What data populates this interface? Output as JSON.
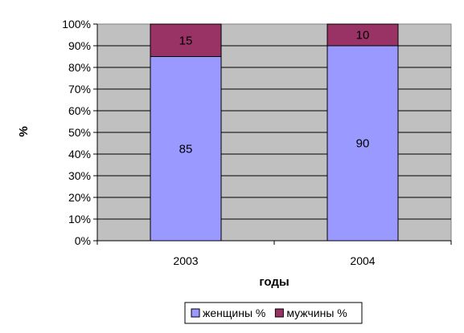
{
  "chart_data": {
    "type": "bar",
    "stacked": "percent",
    "categories": [
      "2003",
      "2004"
    ],
    "series": [
      {
        "name": "женщины %",
        "values": [
          85,
          90
        ],
        "color": "#9999ff"
      },
      {
        "name": "мужчины %",
        "values": [
          15,
          10
        ],
        "color": "#993366"
      }
    ],
    "xlabel": "годы",
    "ylabel": "%",
    "ylim": [
      0,
      100
    ],
    "yticks": [
      "0%",
      "10%",
      "20%",
      "30%",
      "40%",
      "50%",
      "60%",
      "70%",
      "80%",
      "90%",
      "100%"
    ],
    "grid": true,
    "plot_background": "#c0c0c0",
    "legend_position": "bottom"
  }
}
